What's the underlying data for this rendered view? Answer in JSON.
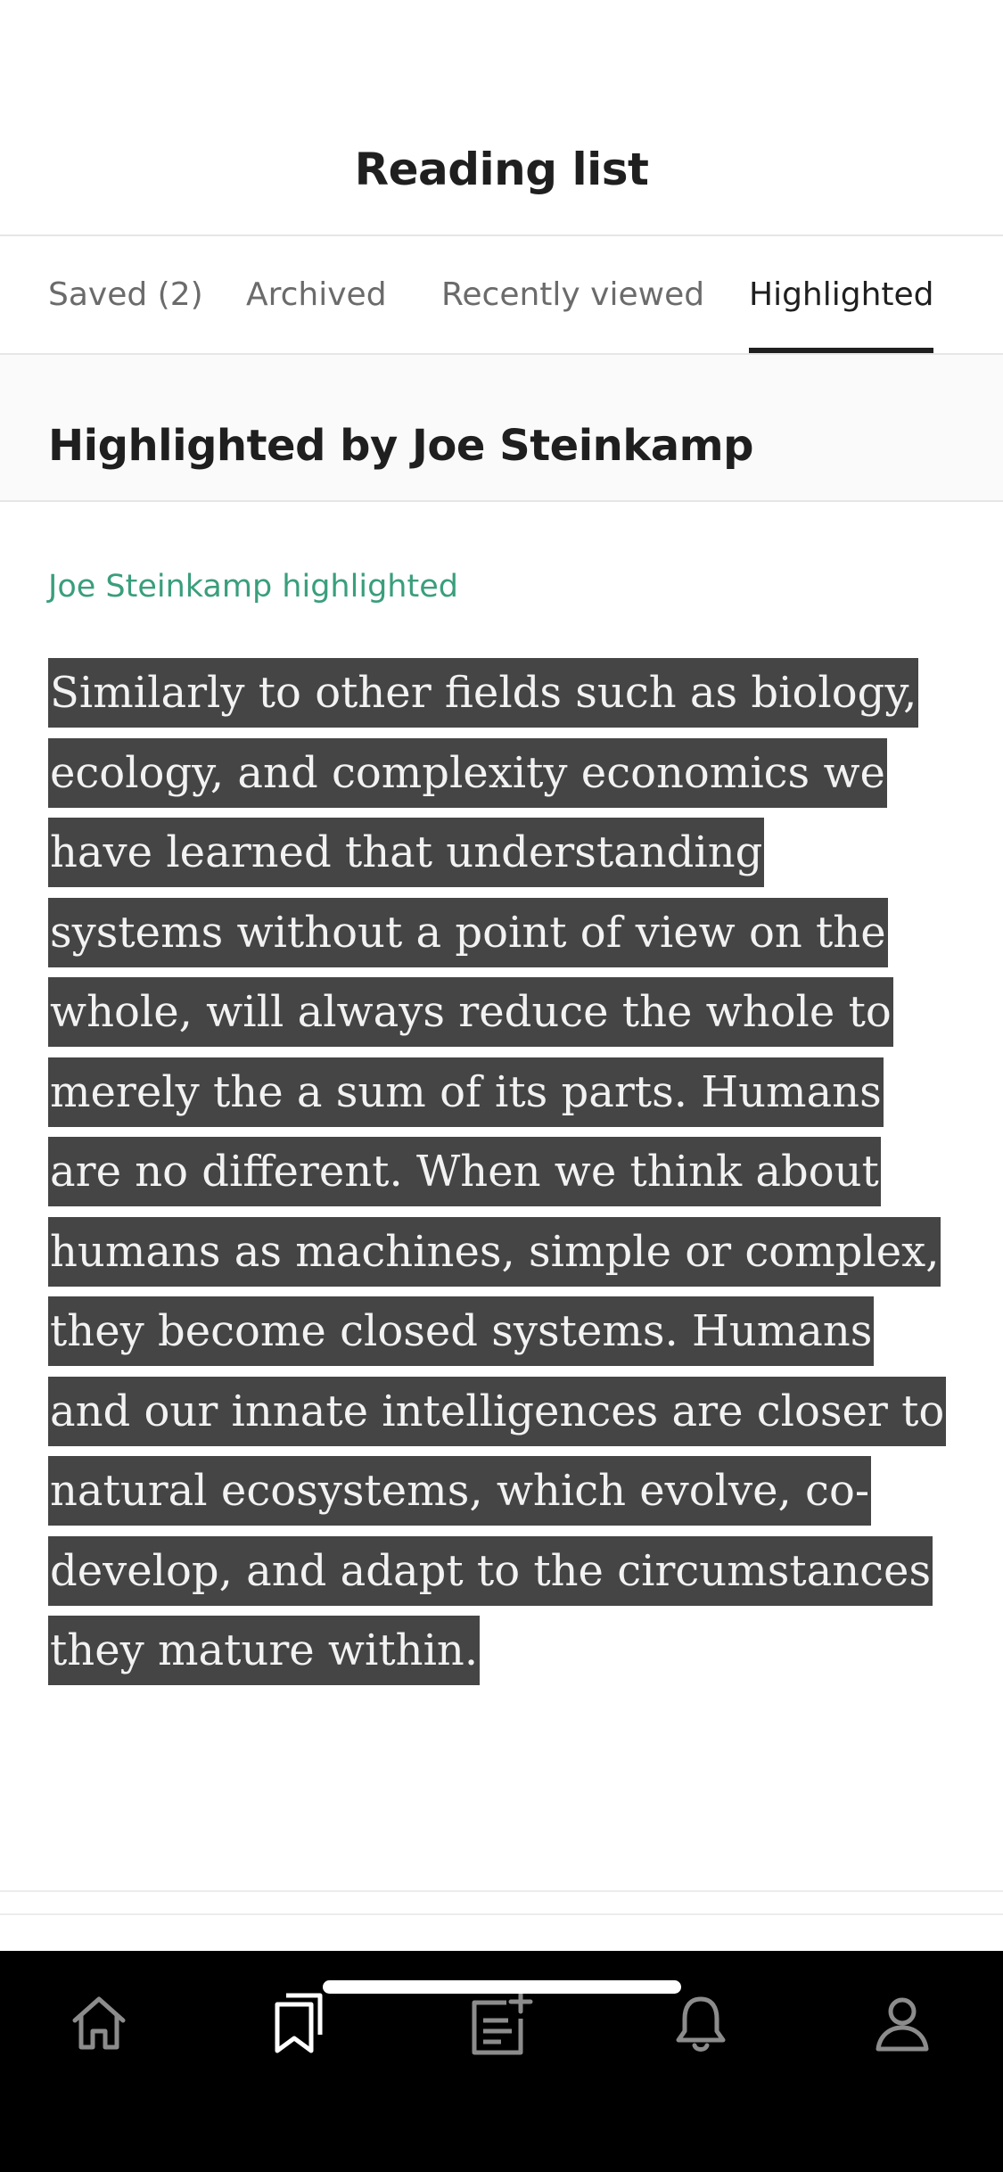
{
  "header": {
    "title": "Reading list"
  },
  "tabs": [
    {
      "label": "Saved (2)",
      "active": false
    },
    {
      "label": "Archived",
      "active": false
    },
    {
      "label": "Recently viewed",
      "active": false
    },
    {
      "label": "Highlighted",
      "active": true
    }
  ],
  "section": {
    "title": "Highlighted by Joe Steinkamp"
  },
  "highlight": {
    "label": "Joe Steinkamp highlighted",
    "lines": [
      "Similarly to other fields such as biology,",
      "ecology, and complexity economics we",
      "have learned that understanding",
      "systems without a point of view on the",
      "whole, will always reduce the whole to",
      "merely the a sum of its parts. Humans",
      "are no different. When we think about",
      "humans as machines, simple or complex,",
      "they become closed systems. Humans",
      "and our innate intelligences are closer to",
      "natural ecosystems, which evolve, co-",
      "develop, and adapt to the circumstances",
      "they mature within."
    ]
  },
  "bottom_nav": {
    "items": [
      {
        "icon": "home-icon",
        "active": false
      },
      {
        "icon": "bookmarks-icon",
        "active": true
      },
      {
        "icon": "new-story-icon",
        "active": false
      },
      {
        "icon": "bell-icon",
        "active": false
      },
      {
        "icon": "profile-icon",
        "active": false
      }
    ]
  },
  "colors": {
    "accent_green": "#3a9e7c",
    "highlight_bg": "#454545",
    "highlight_text": "#f2f2f2",
    "tabbar_bg": "#000000"
  }
}
